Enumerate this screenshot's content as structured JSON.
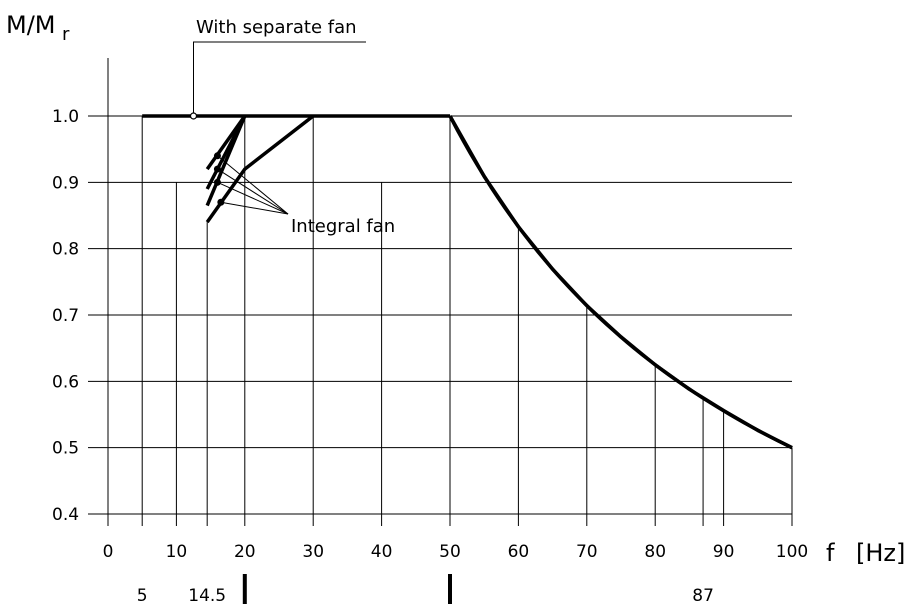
{
  "chart_data": {
    "type": "line",
    "title": "",
    "ylabel": "M/M",
    "ylabel_sub": "r",
    "xlabel": "f",
    "xunit": "[Hz]",
    "xlim": [
      0,
      100
    ],
    "ylim": [
      0.4,
      1.05
    ],
    "grid": true,
    "x_ticks": [
      "0",
      "10",
      "20",
      "30",
      "40",
      "50",
      "60",
      "70",
      "80",
      "90",
      "100"
    ],
    "y_ticks": [
      "0.4",
      "0.5",
      "0.6",
      "0.7",
      "0.8",
      "0.9",
      "1.0"
    ],
    "extra_x_labels": [
      "5",
      "14.5",
      "87"
    ],
    "extra_x_values": [
      5,
      14.5,
      87
    ],
    "range_markers": [
      20,
      50
    ],
    "annotations": {
      "separate_fan": "With separate fan",
      "integral_fan": "Integral fan"
    },
    "series": [
      {
        "name": "With separate fan",
        "points": [
          [
            5,
            1.0
          ],
          [
            50,
            1.0
          ]
        ]
      },
      {
        "name": "",
        "points": [
          [
            50,
            1.0
          ],
          [
            55,
            0.909
          ],
          [
            60,
            0.833
          ],
          [
            65,
            0.769
          ],
          [
            70,
            0.714
          ],
          [
            75,
            0.667
          ],
          [
            80,
            0.625
          ],
          [
            85,
            0.588
          ],
          [
            90,
            0.556
          ],
          [
            95,
            0.526
          ],
          [
            100,
            0.5
          ]
        ]
      },
      {
        "name": "",
        "points": [
          [
            14.5,
            0.92
          ],
          [
            20,
            1.0
          ]
        ]
      },
      {
        "name": "",
        "points": [
          [
            14.5,
            0.89
          ],
          [
            20,
            1.0
          ]
        ]
      },
      {
        "name": "",
        "points": [
          [
            14.5,
            0.865
          ],
          [
            20,
            1.0
          ]
        ]
      },
      {
        "name": "",
        "points": [
          [
            14.5,
            0.84
          ],
          [
            20,
            0.92
          ],
          [
            30,
            1.0
          ]
        ]
      }
    ],
    "markers": [
      {
        "x": 16,
        "y": 0.94
      },
      {
        "x": 16,
        "y": 0.92
      },
      {
        "x": 16,
        "y": 0.9
      },
      {
        "x": 16.5,
        "y": 0.87
      }
    ],
    "separate_fan_marker": {
      "x": 12.5,
      "y": 1.0
    }
  }
}
